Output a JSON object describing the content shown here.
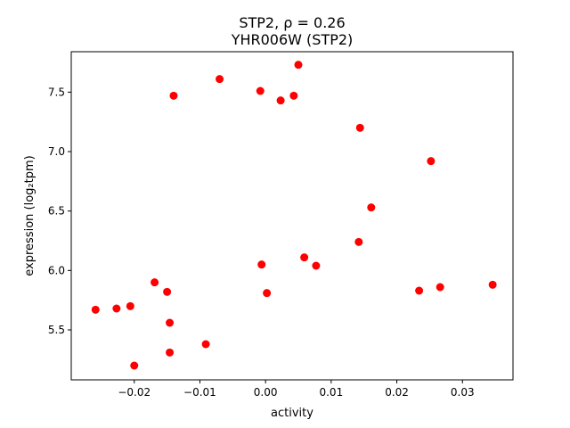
{
  "chart_data": {
    "type": "scatter",
    "title_line1": "STP2, ρ = 0.26",
    "title_line2": "YHR006W (STP2)",
    "xlabel": "activity",
    "ylabel": "expression (log₂tpm)",
    "xlim": [
      -0.0296,
      0.0377
    ],
    "ylim": [
      5.08,
      7.84
    ],
    "xticks": [
      -0.02,
      -0.01,
      0.0,
      0.01,
      0.02,
      0.03
    ],
    "xtick_labels": [
      "−0.02",
      "−0.01",
      "0.00",
      "0.01",
      "0.02",
      "0.03"
    ],
    "yticks": [
      5.5,
      6.0,
      6.5,
      7.0,
      7.5
    ],
    "ytick_labels": [
      "5.5",
      "6.0",
      "6.5",
      "7.0",
      "7.5"
    ],
    "marker_color": "#ff0000",
    "grid": false,
    "points": [
      {
        "x": -0.0259,
        "y": 5.67
      },
      {
        "x": -0.0227,
        "y": 5.68
      },
      {
        "x": -0.0206,
        "y": 5.7
      },
      {
        "x": -0.02,
        "y": 5.2
      },
      {
        "x": -0.0169,
        "y": 5.9
      },
      {
        "x": -0.015,
        "y": 5.82
      },
      {
        "x": -0.0146,
        "y": 5.56
      },
      {
        "x": -0.0146,
        "y": 5.31
      },
      {
        "x": -0.014,
        "y": 7.47
      },
      {
        "x": -0.0091,
        "y": 5.38
      },
      {
        "x": -0.007,
        "y": 7.61
      },
      {
        "x": -0.0008,
        "y": 7.51
      },
      {
        "x": -0.0006,
        "y": 6.05
      },
      {
        "x": 0.0002,
        "y": 5.81
      },
      {
        "x": 0.0023,
        "y": 7.43
      },
      {
        "x": 0.0043,
        "y": 7.47
      },
      {
        "x": 0.005,
        "y": 7.73
      },
      {
        "x": 0.0059,
        "y": 6.11
      },
      {
        "x": 0.0077,
        "y": 6.04
      },
      {
        "x": 0.0142,
        "y": 6.24
      },
      {
        "x": 0.0144,
        "y": 7.2
      },
      {
        "x": 0.0161,
        "y": 6.53
      },
      {
        "x": 0.0234,
        "y": 5.83
      },
      {
        "x": 0.0252,
        "y": 6.92
      },
      {
        "x": 0.0266,
        "y": 5.86
      },
      {
        "x": 0.0346,
        "y": 5.88
      }
    ]
  }
}
